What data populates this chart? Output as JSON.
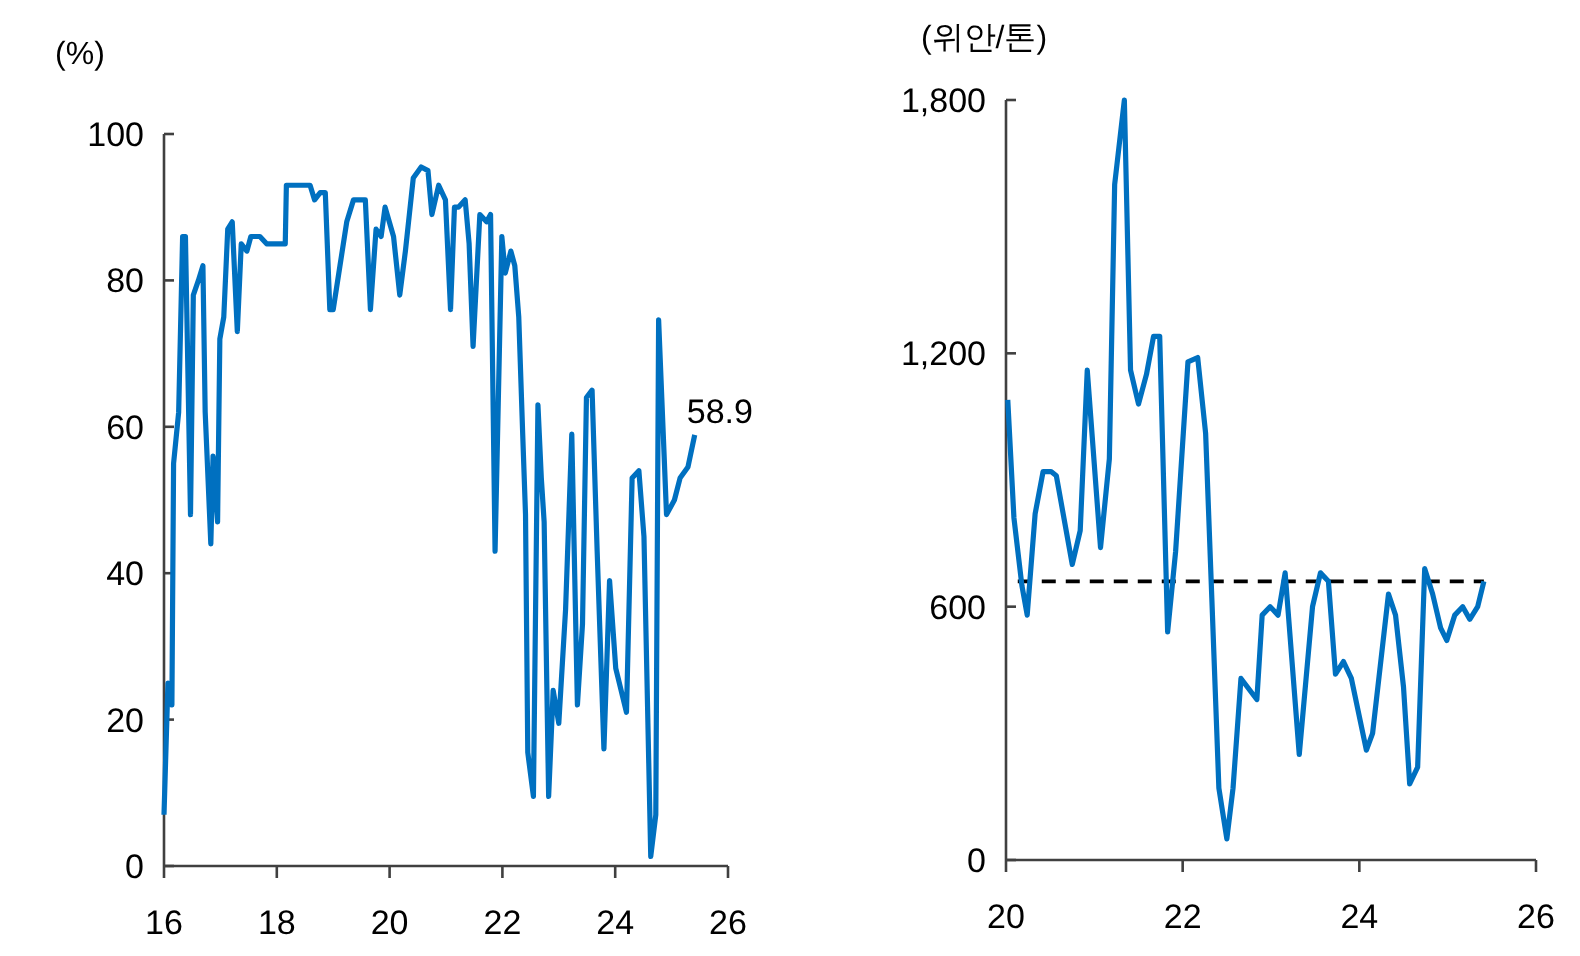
{
  "chart_data": [
    {
      "type": "line",
      "ylabel": "(%)",
      "xlim": [
        16,
        26
      ],
      "xticks": [
        16,
        18,
        20,
        22,
        24,
        26
      ],
      "ylim": [
        0,
        100
      ],
      "yticks": [
        0,
        20,
        40,
        60,
        80,
        100
      ],
      "marker": "none",
      "line_style": "solid",
      "x": [
        16.0,
        16.07,
        16.14,
        16.17,
        16.26,
        16.33,
        16.38,
        16.47,
        16.52,
        16.61,
        16.69,
        16.73,
        16.83,
        16.87,
        16.95,
        16.99,
        17.06,
        17.13,
        17.21,
        17.3,
        17.37,
        17.47,
        17.54,
        17.7,
        17.82,
        18.15,
        18.17,
        18.59,
        18.67,
        18.77,
        18.86,
        18.94,
        19.0,
        19.12,
        19.24,
        19.36,
        19.57,
        19.66,
        19.76,
        19.85,
        19.92,
        20.07,
        20.18,
        20.28,
        20.42,
        20.56,
        20.68,
        20.75,
        20.87,
        20.99,
        21.08,
        21.15,
        21.22,
        21.34,
        21.41,
        21.48,
        21.6,
        21.72,
        21.79,
        21.87,
        21.99,
        22.05,
        22.15,
        22.22,
        22.29,
        22.36,
        22.41,
        22.45,
        22.55,
        22.63,
        22.69,
        22.74,
        22.82,
        22.9,
        23.0,
        23.12,
        23.23,
        23.33,
        23.42,
        23.49,
        23.59,
        23.68,
        23.8,
        23.9,
        24.01,
        24.2,
        24.3,
        24.42,
        24.51,
        24.63,
        24.72,
        24.77,
        24.91,
        25.05,
        25.15,
        25.29,
        25.41
      ],
      "series": [
        {
          "color": "#0070c0",
          "values": [
            7,
            25,
            22,
            55,
            62,
            86,
            86,
            48,
            78,
            80,
            82,
            62,
            44,
            56,
            47,
            72,
            75,
            87,
            88,
            73,
            85,
            84,
            86,
            86,
            85,
            85,
            93,
            93,
            91,
            92,
            92,
            76,
            76,
            82,
            88,
            91,
            91,
            76,
            87,
            86,
            90,
            86,
            78,
            84,
            94,
            95.5,
            95,
            89,
            93,
            91,
            76,
            90,
            90,
            91,
            85,
            71,
            89,
            88,
            89,
            43,
            86,
            81,
            84,
            82,
            75,
            59,
            48,
            15.5,
            9.5,
            63,
            53,
            47,
            9.5,
            24,
            19.5,
            35,
            59,
            22,
            33,
            64,
            65,
            43,
            16,
            39,
            27,
            21,
            53,
            54,
            45,
            1.3,
            7,
            74.6,
            48,
            50,
            53,
            54.5,
            58.9
          ]
        }
      ],
      "annotations": [
        {
          "text": "58.9",
          "x": 25.41,
          "y": 58.9
        }
      ]
    },
    {
      "type": "line",
      "ylabel": "(위안/톤)",
      "xlim": [
        20,
        26
      ],
      "xticks": [
        20,
        22,
        24,
        26
      ],
      "ylim": [
        0,
        1800
      ],
      "yticks": [
        0,
        600,
        {
          "value": 1200,
          "label": "1,200"
        },
        {
          "value": 1800,
          "label": "1,800"
        }
      ],
      "marker": "none",
      "line_style": "solid",
      "x": [
        20.02,
        20.09,
        20.18,
        20.24,
        20.33,
        20.42,
        20.51,
        20.57,
        20.75,
        20.84,
        20.92,
        21.07,
        21.17,
        21.23,
        21.34,
        21.41,
        21.5,
        21.59,
        21.67,
        21.74,
        21.83,
        21.92,
        22.06,
        22.17,
        22.26,
        22.33,
        22.41,
        22.5,
        22.57,
        22.66,
        22.84,
        22.9,
        22.99,
        23.08,
        23.16,
        23.32,
        23.47,
        23.56,
        23.65,
        23.73,
        23.82,
        23.91,
        24.08,
        24.15,
        24.33,
        24.41,
        24.5,
        24.57,
        24.66,
        24.74,
        24.83,
        24.92,
        24.99,
        25.08,
        25.17,
        25.25,
        25.34,
        25.41
      ],
      "series": [
        {
          "color": "#0070c0",
          "values": [
            1090,
            810,
            650,
            580,
            820,
            920,
            920,
            910,
            700,
            780,
            1160,
            740,
            950,
            1600,
            1800,
            1160,
            1080,
            1150,
            1240,
            1240,
            540,
            730,
            1180,
            1190,
            1010,
            620,
            170,
            50,
            170,
            430,
            380,
            580,
            600,
            580,
            680,
            250,
            600,
            680,
            660,
            440,
            470,
            430,
            260,
            300,
            630,
            580,
            410,
            180,
            220,
            690,
            630,
            550,
            520,
            580,
            600,
            570,
            600,
            660
          ]
        }
      ],
      "ref_lines": [
        {
          "axis": "y",
          "value": 660,
          "color": "#000000",
          "line_style": "dashed"
        }
      ]
    }
  ]
}
